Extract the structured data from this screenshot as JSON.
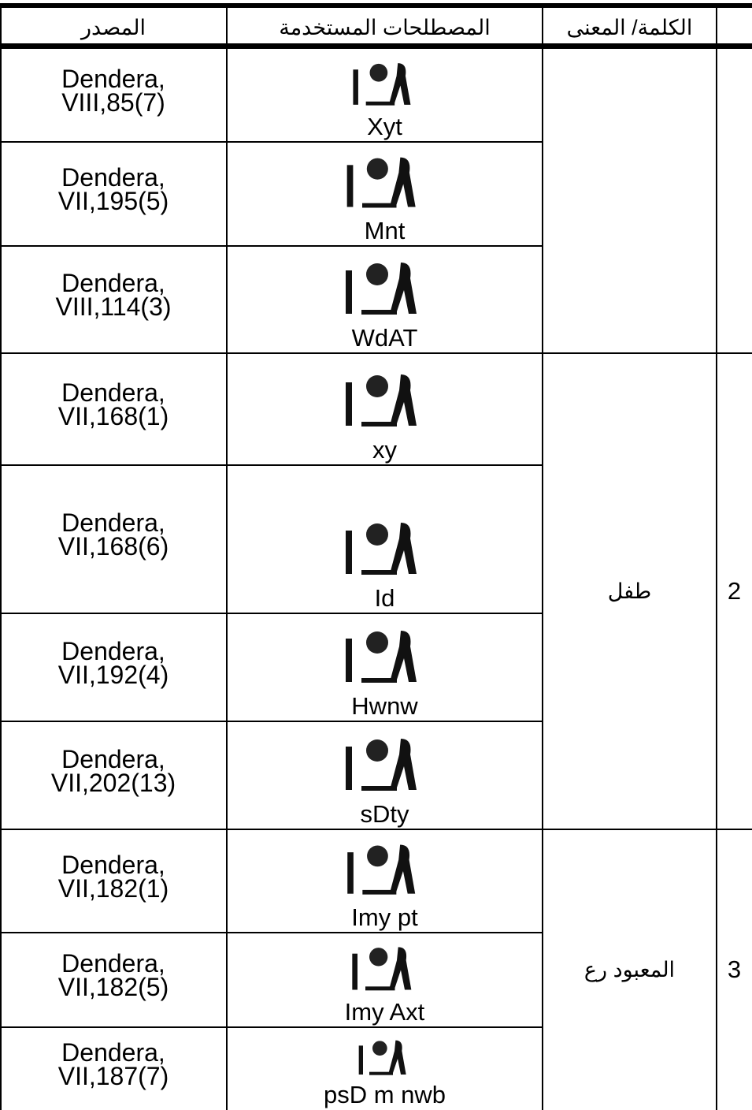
{
  "header": {
    "source": "المصدر",
    "terms": "المصطلحات المستخدمة",
    "word_meaning": "الكلمة/ المعنى"
  },
  "groups": [
    {
      "rows": [
        {
          "source": [
            "Dendera,",
            "VIII,85(7)"
          ],
          "term": "Xyt"
        },
        {
          "source": [
            "Dendera,",
            "VII,195(5)"
          ],
          "term": "Mnt"
        },
        {
          "source": [
            "Dendera,",
            "VIII,114(3)"
          ],
          "term": "WdAT"
        }
      ]
    },
    {
      "number": "2",
      "word": "طفل",
      "rows": [
        {
          "source": [
            "Dendera,",
            "VII,168(1)"
          ],
          "term": "xy"
        },
        {
          "source": [
            "Dendera,",
            "VII,168(6)"
          ],
          "term": "Id"
        },
        {
          "source": [
            "Dendera,",
            "VII,192(4)"
          ],
          "term": "Hwnw"
        },
        {
          "source": [
            "Dendera,",
            "VII,202(13)"
          ],
          "term": "sDty"
        }
      ]
    },
    {
      "number": "3",
      "word": "المعبود رع",
      "rows": [
        {
          "source": [
            "Dendera,",
            "VII,182(1)"
          ],
          "term": "Imy pt"
        },
        {
          "source": [
            "Dendera,",
            "VII,182(5)"
          ],
          "term": "Imy Axt"
        },
        {
          "source": [
            "Dendera,",
            "VII,187(7)"
          ],
          "term": "psD m nwb"
        }
      ]
    }
  ]
}
